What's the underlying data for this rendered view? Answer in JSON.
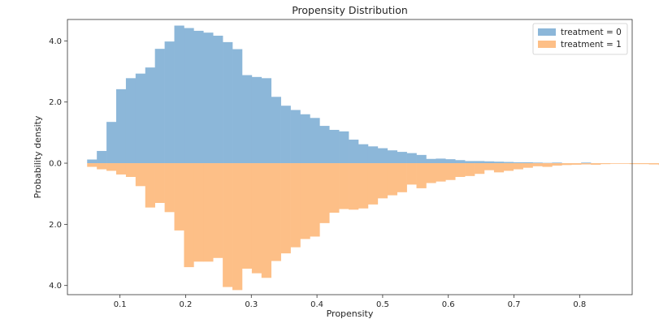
{
  "chart_data": {
    "type": "bar",
    "title": "Propensity Distribution",
    "xlabel": "Propensity",
    "ylabel": "Probability density",
    "xlim": [
      0.02,
      0.88
    ],
    "ylim": [
      -4.3,
      4.7
    ],
    "xticks": [
      0.1,
      0.2,
      0.3,
      0.4,
      0.5,
      0.6,
      0.7,
      0.8
    ],
    "xtick_labels": [
      "0.1",
      "0.2",
      "0.3",
      "0.4",
      "0.5",
      "0.6",
      "0.7",
      "0.8"
    ],
    "yticks": [
      4.0,
      2.0,
      0.0,
      -2.0,
      -4.0
    ],
    "ytick_labels": [
      "4.0",
      "2.0",
      "0.0",
      "2.0",
      "4.0"
    ],
    "grid": false,
    "legend_position": "top-right",
    "bin_width": 0.01475,
    "series": [
      {
        "name": "treatment = 0",
        "color": "#8cb7d9",
        "x_start": 0.05,
        "values": [
          0.12,
          0.4,
          1.35,
          2.42,
          2.78,
          2.93,
          3.13,
          3.74,
          3.98,
          4.5,
          4.42,
          4.33,
          4.27,
          4.17,
          3.96,
          3.73,
          2.88,
          2.82,
          2.78,
          2.17,
          1.88,
          1.74,
          1.6,
          1.48,
          1.22,
          1.09,
          1.04,
          0.77,
          0.62,
          0.55,
          0.49,
          0.42,
          0.37,
          0.33,
          0.27,
          0.14,
          0.15,
          0.13,
          0.1,
          0.07,
          0.07,
          0.06,
          0.05,
          0.04,
          0.03,
          0.03,
          0.02,
          0.01,
          0.02,
          0.0,
          0.0,
          0.02
        ]
      },
      {
        "name": "treatment = 1",
        "color": "#fdbf87",
        "x_start": 0.05,
        "values": [
          -0.12,
          -0.2,
          -0.25,
          -0.37,
          -0.45,
          -0.75,
          -1.45,
          -1.3,
          -1.6,
          -2.2,
          -3.4,
          -3.22,
          -3.22,
          -3.1,
          -4.05,
          -4.15,
          -3.45,
          -3.6,
          -3.75,
          -3.2,
          -2.95,
          -2.75,
          -2.48,
          -2.4,
          -1.96,
          -1.62,
          -1.5,
          -1.52,
          -1.48,
          -1.35,
          -1.15,
          -1.05,
          -0.95,
          -0.7,
          -0.82,
          -0.65,
          -0.6,
          -0.55,
          -0.45,
          -0.42,
          -0.35,
          -0.23,
          -0.3,
          -0.25,
          -0.2,
          -0.15,
          -0.1,
          -0.12,
          -0.08,
          -0.06,
          -0.05,
          -0.04,
          -0.05,
          -0.03,
          -0.02,
          -0.02,
          -0.03,
          -0.03,
          -0.04,
          -0.06,
          -0.08,
          -0.07,
          -0.05,
          -0.07,
          -0.03
        ]
      }
    ]
  }
}
